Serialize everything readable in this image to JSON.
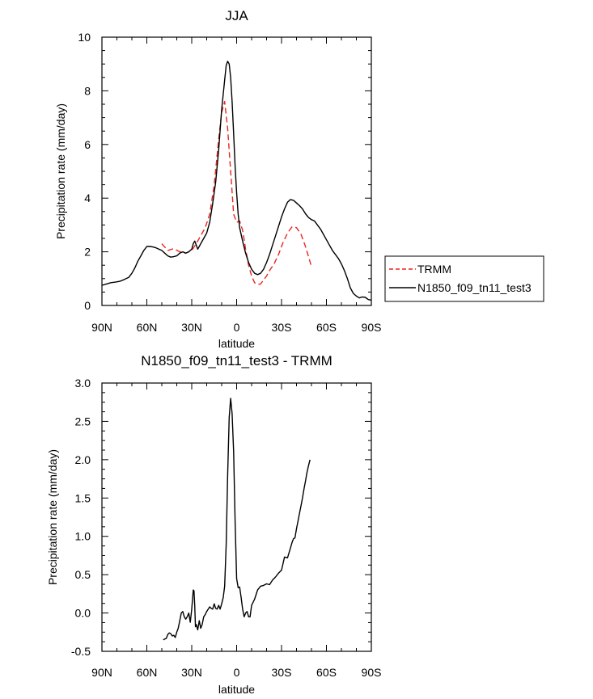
{
  "chart_data": [
    {
      "type": "line",
      "title": "JJA",
      "xlabel": "latitude",
      "ylabel": "Precipitation rate (mm/day)",
      "xlim": [
        90,
        -90
      ],
      "ylim": [
        0,
        10
      ],
      "yticks": [
        0,
        2,
        4,
        6,
        8,
        10
      ],
      "ytick_labels": [
        "0",
        "2",
        "4",
        "6",
        "8",
        "10"
      ],
      "xticks": [
        90,
        60,
        30,
        0,
        -30,
        -60,
        -90
      ],
      "xtick_labels": [
        "90N",
        "60N",
        "30N",
        "0",
        "30S",
        "60S",
        "90S"
      ],
      "legend": {
        "position": "right",
        "entries": [
          "TRMM",
          "N1850_f09_tn11_test3"
        ]
      },
      "series": [
        {
          "name": "TRMM",
          "color": "#e8261f",
          "dash": "dashed",
          "x": [
            50,
            46,
            42,
            38,
            34,
            30,
            27,
            24,
            21,
            18,
            15,
            12,
            10,
            8,
            6,
            4,
            2,
            0,
            -2,
            -4,
            -6,
            -8,
            -10,
            -12,
            -14,
            -16,
            -18,
            -20,
            -22,
            -25,
            -28,
            -31,
            -34,
            -37,
            -40,
            -43,
            -46,
            -50
          ],
          "y": [
            2.3,
            2.05,
            2.12,
            2.0,
            1.95,
            2.05,
            2.3,
            2.6,
            2.9,
            3.4,
            4.5,
            6.2,
            7.2,
            7.6,
            6.6,
            5.0,
            3.4,
            3.1,
            3.15,
            2.8,
            2.1,
            1.5,
            1.1,
            0.85,
            0.78,
            0.8,
            0.95,
            1.1,
            1.3,
            1.55,
            1.9,
            2.35,
            2.7,
            2.93,
            2.9,
            2.65,
            2.2,
            1.45
          ]
        },
        {
          "name": "N1850_f09_tn11_test3",
          "color": "#000000",
          "dash": "solid",
          "x": [
            90,
            87,
            84,
            81,
            78,
            75,
            72,
            70,
            68,
            66,
            64,
            62,
            60,
            58,
            56,
            54,
            52,
            50,
            48,
            46,
            44,
            42,
            40,
            38,
            36,
            34,
            32,
            30,
            29,
            28,
            27,
            26,
            25,
            24,
            22,
            20,
            18,
            16,
            14,
            12,
            10,
            8,
            7,
            6,
            5,
            4,
            3,
            2,
            1,
            0,
            -1,
            -2,
            -4,
            -6,
            -8,
            -10,
            -12,
            -14,
            -16,
            -18,
            -20,
            -22,
            -24,
            -26,
            -28,
            -30,
            -32,
            -34,
            -36,
            -38,
            -40,
            -42,
            -44,
            -46,
            -48,
            -50,
            -52,
            -54,
            -56,
            -58,
            -60,
            -62,
            -64,
            -66,
            -68,
            -70,
            -72,
            -74,
            -76,
            -78,
            -80,
            -82,
            -84,
            -86,
            -88,
            -90
          ],
          "y": [
            0.75,
            0.8,
            0.85,
            0.87,
            0.9,
            0.97,
            1.05,
            1.2,
            1.4,
            1.65,
            1.85,
            2.05,
            2.2,
            2.2,
            2.18,
            2.15,
            2.1,
            2.05,
            1.95,
            1.85,
            1.8,
            1.82,
            1.85,
            1.95,
            2.0,
            1.95,
            2.0,
            2.1,
            2.3,
            2.4,
            2.25,
            2.1,
            2.2,
            2.3,
            2.5,
            2.7,
            3.1,
            3.8,
            4.6,
            5.8,
            7.3,
            8.4,
            8.95,
            9.1,
            9.0,
            8.5,
            7.6,
            6.4,
            5.2,
            4.2,
            3.4,
            2.9,
            2.4,
            1.95,
            1.6,
            1.35,
            1.2,
            1.15,
            1.2,
            1.35,
            1.6,
            1.9,
            2.25,
            2.6,
            2.95,
            3.3,
            3.6,
            3.85,
            3.95,
            3.92,
            3.82,
            3.72,
            3.6,
            3.42,
            3.28,
            3.2,
            3.15,
            3.0,
            2.85,
            2.65,
            2.45,
            2.25,
            2.05,
            1.9,
            1.75,
            1.55,
            1.3,
            1.0,
            0.65,
            0.45,
            0.35,
            0.28,
            0.32,
            0.3,
            0.22,
            0.2
          ]
        }
      ]
    },
    {
      "type": "line",
      "title": "N1850_f09_tn11_test3 - TRMM",
      "xlabel": "latitude",
      "ylabel": "Precipitation rate (mm/day)",
      "xlim": [
        90,
        -90
      ],
      "ylim": [
        -0.5,
        3.0
      ],
      "yticks": [
        -0.5,
        0.0,
        0.5,
        1.0,
        1.5,
        2.0,
        2.5,
        3.0
      ],
      "ytick_labels": [
        "-0.5",
        "0.0",
        "0.5",
        "1.0",
        "1.5",
        "2.0",
        "2.5",
        "3.0"
      ],
      "xticks": [
        90,
        60,
        30,
        0,
        -30,
        -60,
        -90
      ],
      "xtick_labels": [
        "90N",
        "60N",
        "30N",
        "0",
        "30S",
        "60S",
        "90S"
      ],
      "series": [
        {
          "name": "N1850_f09_tn11_test3 - TRMM",
          "color": "#000000",
          "dash": "solid",
          "x": [
            49,
            47,
            46,
            45,
            44,
            43,
            42,
            41,
            40,
            39,
            38,
            37,
            36,
            35,
            34,
            33,
            32,
            31,
            30,
            29,
            28.5,
            28,
            27.5,
            27,
            26,
            25,
            24,
            23,
            22,
            21,
            20,
            19,
            18,
            17,
            16,
            15,
            14,
            13,
            12,
            11,
            10,
            9,
            8,
            7,
            6,
            5,
            4,
            3,
            2,
            1,
            0,
            -1,
            -2,
            -3,
            -4,
            -5,
            -6,
            -7,
            -8,
            -9,
            -10,
            -12,
            -14,
            -16,
            -18,
            -20,
            -22,
            -24,
            -26,
            -28,
            -30,
            -32,
            -34,
            -36,
            -37,
            -38,
            -39,
            -40,
            -41,
            -42,
            -43,
            -44,
            -45,
            -46,
            -47,
            -48,
            -49
          ],
          "y": [
            -0.35,
            -0.33,
            -0.28,
            -0.26,
            -0.27,
            -0.3,
            -0.29,
            -0.32,
            -0.25,
            -0.2,
            -0.1,
            0.0,
            0.02,
            -0.05,
            -0.08,
            -0.05,
            0.0,
            -0.12,
            0.05,
            0.3,
            0.29,
            0.1,
            -0.18,
            -0.15,
            -0.22,
            -0.1,
            -0.2,
            -0.15,
            -0.05,
            -0.02,
            0.02,
            0.05,
            0.08,
            0.06,
            0.05,
            0.12,
            0.06,
            0.05,
            0.1,
            0.05,
            0.12,
            0.2,
            0.35,
            0.9,
            1.8,
            2.55,
            2.8,
            2.6,
            2.1,
            1.2,
            0.45,
            0.33,
            0.34,
            0.2,
            0.05,
            -0.05,
            0.0,
            0.02,
            -0.05,
            -0.05,
            0.1,
            0.18,
            0.3,
            0.35,
            0.36,
            0.38,
            0.37,
            0.43,
            0.47,
            0.52,
            0.56,
            0.73,
            0.72,
            0.85,
            0.92,
            0.97,
            0.98,
            1.1,
            1.2,
            1.3,
            1.4,
            1.5,
            1.62,
            1.72,
            1.83,
            1.92,
            2.0
          ]
        }
      ]
    }
  ]
}
